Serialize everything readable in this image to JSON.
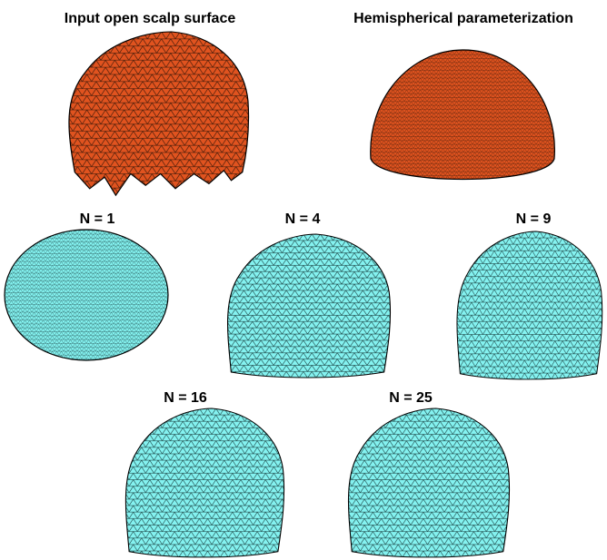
{
  "header": {
    "left_title": "Input open scalp surface",
    "right_title": "Hemispherical parameterization"
  },
  "panels": [
    {
      "label": "N = 1"
    },
    {
      "label": "N = 4"
    },
    {
      "label": "N = 9"
    },
    {
      "label": "N = 16"
    },
    {
      "label": "N = 25"
    }
  ]
}
